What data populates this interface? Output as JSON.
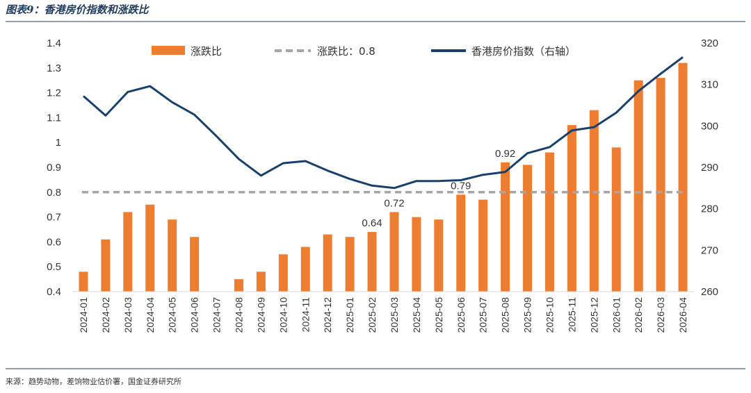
{
  "figure_title": "图表9：香港房价指数和涨跌比",
  "source": "来源：趋势动物，差饷物业估价署，国金证券研究所",
  "colors": {
    "bar": "#ED7D31",
    "line": "#17406D",
    "ref_line": "#A6A6A6",
    "title_rule": "#1f3b5c"
  },
  "chart_data": {
    "type": "bar",
    "categories": [
      "2024-01",
      "2024-02",
      "2024-03",
      "2024-04",
      "2024-05",
      "2024-06",
      "2024-07",
      "2024-08",
      "2024-09",
      "2024-10",
      "2024-11",
      "2024-12",
      "2025-01",
      "2025-02",
      "2025-03",
      "2025-04",
      "2025-05",
      "2025-06",
      "2025-07",
      "2025-08",
      "2025-09",
      "2025-10",
      "2025-11",
      "2025-12",
      "2026-01",
      "2026-02",
      "2026-03",
      "2026-04"
    ],
    "series": [
      {
        "name": "涨跌比",
        "type": "bar",
        "axis": "left",
        "values": [
          0.48,
          0.61,
          0.72,
          0.75,
          0.69,
          0.62,
          null,
          0.45,
          0.48,
          0.55,
          0.58,
          0.63,
          0.62,
          0.64,
          0.72,
          0.7,
          0.69,
          0.79,
          0.77,
          0.92,
          0.91,
          0.96,
          1.07,
          1.13,
          0.98,
          1.25,
          1.26,
          1.32
        ]
      },
      {
        "name": "涨跌比：0.8",
        "type": "reference",
        "axis": "left",
        "value": 0.8
      },
      {
        "name": "香港房价指数（右轴）",
        "type": "line",
        "axis": "right",
        "values": [
          307.2,
          302.5,
          308.2,
          309.6,
          305.7,
          302.7,
          297.5,
          292.0,
          288.0,
          291.0,
          291.5,
          289.2,
          287.2,
          285.6,
          285.0,
          286.7,
          286.7,
          286.9,
          288.2,
          288.9,
          293.4,
          294.9,
          298.9,
          299.7,
          303.2,
          308.4,
          312.6,
          316.6
        ]
      }
    ],
    "data_labels": [
      {
        "index": 13,
        "text": "0.64"
      },
      {
        "index": 14,
        "text": "0.72"
      },
      {
        "index": 17,
        "text": "0.79"
      },
      {
        "index": 19,
        "text": "0.92"
      }
    ],
    "y_left": {
      "min": 0.4,
      "max": 1.4,
      "ticks": [
        "0.4",
        "0.5",
        "0.6",
        "0.7",
        "0.8",
        "0.9",
        "1",
        "1.1",
        "1.2",
        "1.3",
        "1.4"
      ]
    },
    "y_right": {
      "min": 260,
      "max": 320,
      "ticks": [
        "260",
        "270",
        "280",
        "290",
        "300",
        "310",
        "320"
      ]
    },
    "legend_position": "top",
    "grid": false
  }
}
